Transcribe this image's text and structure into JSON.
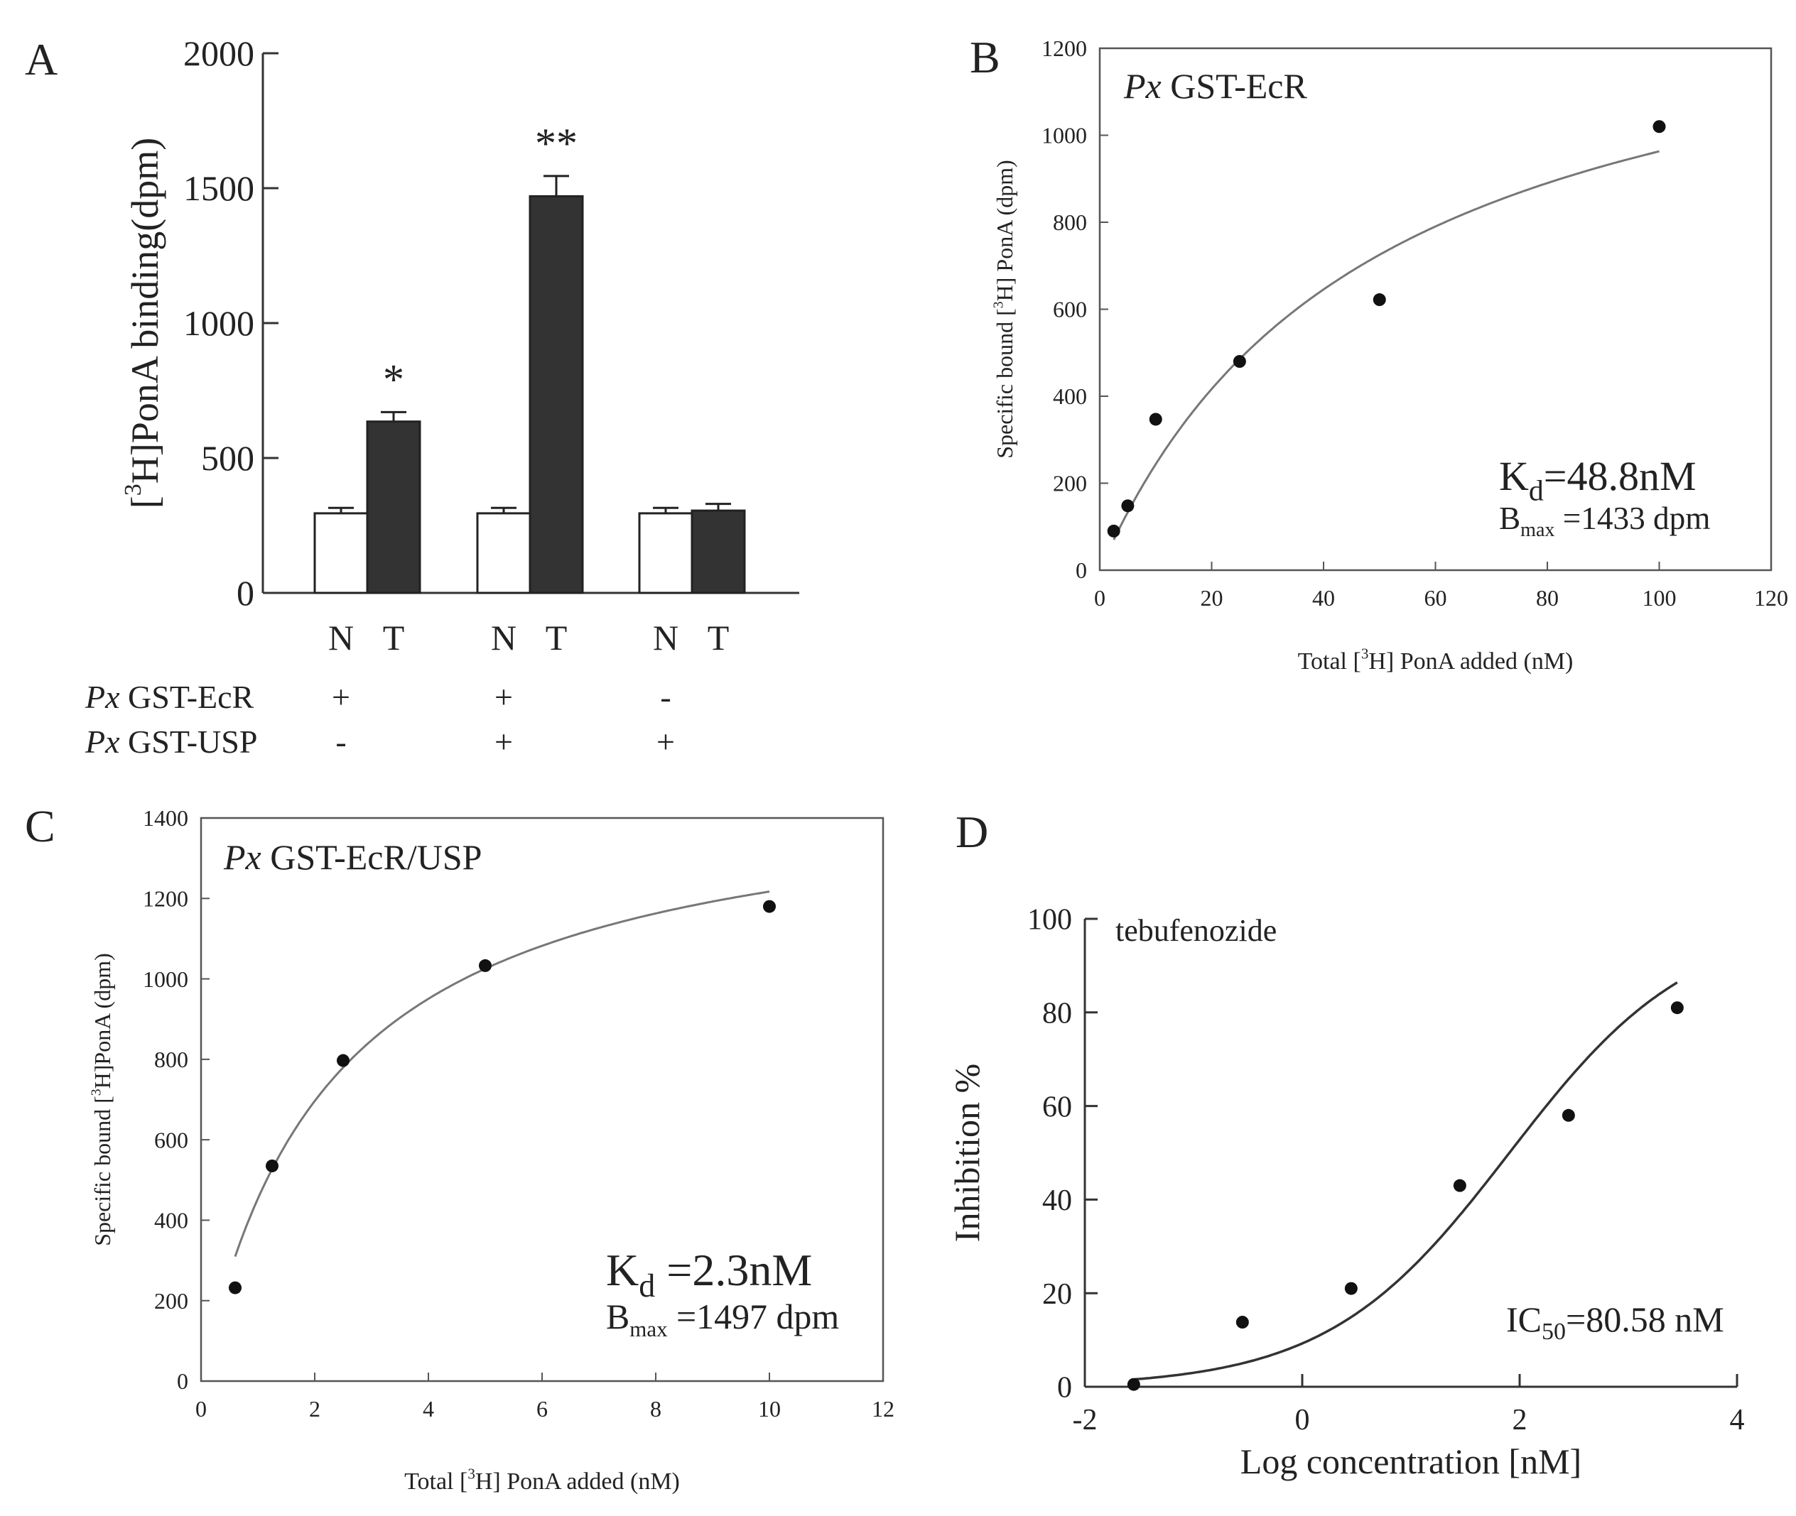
{
  "chart_data": [
    {
      "panel": "A",
      "type": "bar",
      "panel_label": "A",
      "ylabel": "[3H]PonA binding(dpm)",
      "ylabel_parts": {
        "open": "[",
        "sup": "3",
        "rest": "H]PonA binding(dpm)"
      },
      "ylim": [
        0,
        2000
      ],
      "yticks": [
        0,
        500,
        1000,
        1500,
        2000
      ],
      "groups": [
        {
          "bars": [
            {
              "label": "N",
              "value": 295,
              "err": 20,
              "fill": "#ffffff"
            },
            {
              "label": "T",
              "value": 635,
              "err": 35,
              "fill": "#333333",
              "sig": "*"
            }
          ],
          "ecr": "+",
          "usp": "-"
        },
        {
          "bars": [
            {
              "label": "N",
              "value": 295,
              "err": 20,
              "fill": "#ffffff"
            },
            {
              "label": "T",
              "value": 1470,
              "err": 75,
              "fill": "#333333",
              "sig": "**"
            }
          ],
          "ecr": "+",
          "usp": "+"
        },
        {
          "bars": [
            {
              "label": "N",
              "value": 295,
              "err": 20,
              "fill": "#ffffff"
            },
            {
              "label": "T",
              "value": 305,
              "err": 25,
              "fill": "#333333"
            }
          ],
          "ecr": "-",
          "usp": "+"
        }
      ],
      "row_labels": [
        {
          "italic": "Px",
          "text": " GST-EcR"
        },
        {
          "italic": "Px",
          "text": " GST-USP"
        }
      ]
    },
    {
      "panel": "B",
      "type": "scatter",
      "panel_label": "B",
      "annotation": {
        "italic": "Px",
        "text": " GST-EcR"
      },
      "xlabel_parts": {
        "pre": "Total [",
        "sup": "3",
        "post": "H] PonA added (nM)"
      },
      "ylabel_parts": {
        "pre": "Specific bound [",
        "sup": "3",
        "post": "H] PonA (dpm)"
      },
      "xlim": [
        0,
        120
      ],
      "xticks": [
        0,
        20,
        40,
        60,
        80,
        100,
        120
      ],
      "ylim": [
        0,
        1200
      ],
      "yticks": [
        0,
        200,
        400,
        600,
        800,
        1000,
        1200
      ],
      "points": [
        {
          "x": 2.5,
          "y": 90
        },
        {
          "x": 5,
          "y": 148
        },
        {
          "x": 10,
          "y": 347
        },
        {
          "x": 25,
          "y": 480
        },
        {
          "x": 50,
          "y": 622
        },
        {
          "x": 100,
          "y": 1020
        }
      ],
      "fit": {
        "model": "hyperbola",
        "bmax": 1433,
        "kd": 48.8,
        "x_from": 2.5,
        "x_to": 100
      },
      "stats": {
        "kd_main": "K",
        "kd_sub": "d",
        "kd_value": "=48.8nM",
        "bmax_main": "B",
        "bmax_sub": "max",
        "bmax_value": " =1433  dpm"
      }
    },
    {
      "panel": "C",
      "type": "scatter",
      "panel_label": "C",
      "annotation": {
        "italic": "Px",
        "text": " GST-EcR/USP"
      },
      "xlabel_parts": {
        "pre": "Total [",
        "sup": "3",
        "post": "H] PonA added (nM)"
      },
      "ylabel_parts": {
        "pre": "Specific bound [",
        "sup": "3",
        "post": "H]PonA (dpm)"
      },
      "xlim": [
        0,
        12
      ],
      "xticks": [
        0,
        2,
        4,
        6,
        8,
        10,
        12
      ],
      "ylim": [
        0,
        1400
      ],
      "yticks": [
        0,
        200,
        400,
        600,
        800,
        1000,
        1200,
        1400
      ],
      "points": [
        {
          "x": 0.6,
          "y": 232
        },
        {
          "x": 1.25,
          "y": 535
        },
        {
          "x": 2.5,
          "y": 797
        },
        {
          "x": 5,
          "y": 1033
        },
        {
          "x": 10,
          "y": 1180
        }
      ],
      "fit": {
        "model": "hyperbola",
        "bmax": 1497,
        "kd": 2.3,
        "x_from": 0.6,
        "x_to": 10
      },
      "stats": {
        "kd_main": "K",
        "kd_sub": "d",
        "kd_value": " =2.3nM",
        "bmax_main": "B",
        "bmax_sub": "max",
        "bmax_value": " =1497  dpm"
      }
    },
    {
      "panel": "D",
      "type": "scatter",
      "panel_label": "D",
      "annotation": {
        "italic": "",
        "text": "tebufenozide"
      },
      "xlabel": "Log concentration [nM]",
      "ylabel": "Inhibition %",
      "xlim": [
        -2,
        4
      ],
      "xticks": [
        -2,
        0,
        2,
        4
      ],
      "ylim": [
        0,
        100
      ],
      "yticks": [
        0,
        20,
        40,
        60,
        80,
        100
      ],
      "points": [
        {
          "x": -1.55,
          "y": 0.5
        },
        {
          "x": -0.55,
          "y": 13.8
        },
        {
          "x": 0.45,
          "y": 21
        },
        {
          "x": 1.45,
          "y": 43
        },
        {
          "x": 2.45,
          "y": 58
        },
        {
          "x": 3.45,
          "y": 81
        }
      ],
      "fit": {
        "model": "logistic",
        "bottom": 0,
        "top": 100,
        "logic50": 1.906,
        "hill": 0.52,
        "x_from": -1.55,
        "x_to": 3.45
      },
      "stats": {
        "ic_main": "IC",
        "ic_sub": "50",
        "ic_value": "=80.58 nM"
      }
    }
  ]
}
